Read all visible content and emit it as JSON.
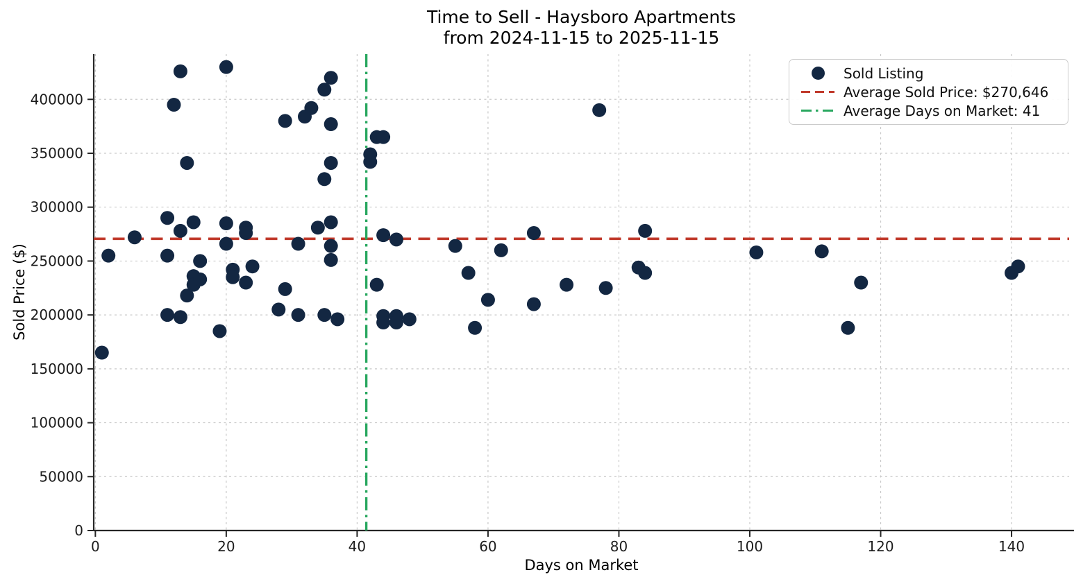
{
  "figure": {
    "title_line1": "Time to Sell - Haysboro Apartments",
    "title_line2": "from 2024-11-15 to 2025-11-15",
    "xlabel": "Days on Market",
    "ylabel": "Sold Price ($)"
  },
  "legend": {
    "items": [
      {
        "label": "Sold Listing",
        "swatch": "dot"
      },
      {
        "label": "Average Sold Price: $270,646",
        "swatch": "dashed-line"
      },
      {
        "label": "Average Days on Market: 41",
        "swatch": "dashdot-line"
      }
    ]
  },
  "colors": {
    "marker": "#132742",
    "avg_price_line": "#c0392b",
    "avg_days_line": "#28a75f",
    "grid": "#c9c9c9",
    "spine": "#262626"
  },
  "chart_data": {
    "type": "scatter",
    "title": "Time to Sell - Haysboro Apartments from 2024-11-15 to 2025-11-15",
    "xlabel": "Days on Market",
    "ylabel": "Sold Price ($)",
    "grid": true,
    "legend_position": "upper right",
    "xlim": [
      -0.25,
      148.8
    ],
    "ylim": [
      0,
      442000
    ],
    "xticks": [
      0,
      20,
      40,
      60,
      80,
      100,
      120,
      140
    ],
    "yticks": [
      0,
      50000,
      100000,
      150000,
      200000,
      250000,
      300000,
      350000,
      400000
    ],
    "avg_sold_price": 270646,
    "avg_days_on_market": 41,
    "avg_days_line_x": 41.4,
    "series": [
      {
        "name": "Sold Listing",
        "points": [
          [
            1,
            165000
          ],
          [
            2,
            255000
          ],
          [
            6,
            272000
          ],
          [
            11,
            290000
          ],
          [
            11,
            255000
          ],
          [
            11,
            200000
          ],
          [
            12,
            395000
          ],
          [
            13,
            426000
          ],
          [
            13,
            278000
          ],
          [
            13,
            198000
          ],
          [
            14,
            341000
          ],
          [
            14,
            218000
          ],
          [
            15,
            286000
          ],
          [
            15,
            236000
          ],
          [
            15,
            228000
          ],
          [
            16,
            250000
          ],
          [
            16,
            233000
          ],
          [
            19,
            185000
          ],
          [
            20,
            430000
          ],
          [
            20,
            285000
          ],
          [
            20,
            266000
          ],
          [
            21,
            242000
          ],
          [
            21,
            235000
          ],
          [
            23,
            281000
          ],
          [
            23,
            276000
          ],
          [
            23,
            230000
          ],
          [
            24,
            245000
          ],
          [
            28,
            205000
          ],
          [
            29,
            380000
          ],
          [
            29,
            224000
          ],
          [
            31,
            266000
          ],
          [
            31,
            200000
          ],
          [
            32,
            384000
          ],
          [
            33,
            392000
          ],
          [
            34,
            281000
          ],
          [
            35,
            409000
          ],
          [
            35,
            326000
          ],
          [
            35,
            200000
          ],
          [
            36,
            420000
          ],
          [
            36,
            377000
          ],
          [
            36,
            341000
          ],
          [
            36,
            286000
          ],
          [
            36,
            264000
          ],
          [
            36,
            251000
          ],
          [
            37,
            196000
          ],
          [
            42,
            349000
          ],
          [
            42,
            342000
          ],
          [
            43,
            365000
          ],
          [
            43,
            228000
          ],
          [
            44,
            365000
          ],
          [
            44,
            274000
          ],
          [
            44,
            199000
          ],
          [
            44,
            193000
          ],
          [
            46,
            270000
          ],
          [
            46,
            199000
          ],
          [
            46,
            193000
          ],
          [
            48,
            196000
          ],
          [
            55,
            264000
          ],
          [
            57,
            239000
          ],
          [
            58,
            188000
          ],
          [
            60,
            214000
          ],
          [
            62,
            260000
          ],
          [
            67,
            276000
          ],
          [
            67,
            210000
          ],
          [
            72,
            228000
          ],
          [
            77,
            390000
          ],
          [
            78,
            225000
          ],
          [
            83,
            244000
          ],
          [
            84,
            278000
          ],
          [
            84,
            239000
          ],
          [
            101,
            258000
          ],
          [
            111,
            259000
          ],
          [
            115,
            188000
          ],
          [
            117,
            230000
          ],
          [
            140,
            239000
          ],
          [
            141,
            245000
          ]
        ]
      }
    ]
  }
}
